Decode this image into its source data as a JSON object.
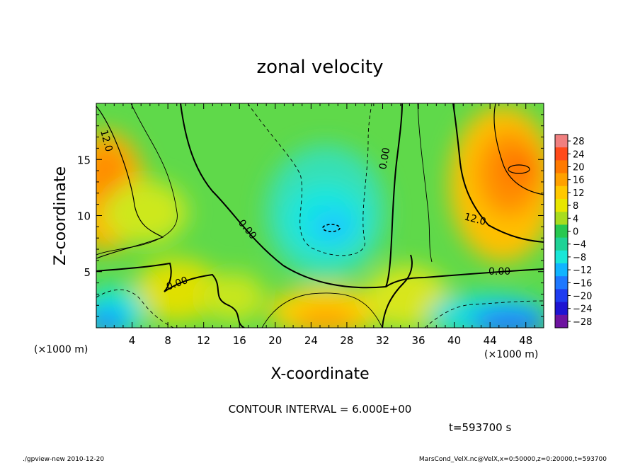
{
  "chart_data": {
    "type": "heatmap",
    "title": "zonal velocity",
    "xlabel": "X-coordinate",
    "ylabel": "Z-coordinate",
    "x_unit_label": "(×1000 m)",
    "x_unit_label_right": "(×1000 m)",
    "xlim": [
      0,
      50
    ],
    "ylim": [
      0,
      20
    ],
    "x_ticks": [
      "4",
      "8",
      "12",
      "16",
      "20",
      "24",
      "28",
      "32",
      "36",
      "40",
      "44",
      "48"
    ],
    "y_ticks": [
      "5",
      "10",
      "15"
    ],
    "colorbar_levels": [
      "28",
      "24",
      "20",
      "16",
      "12",
      "8",
      "4",
      "0",
      "−4",
      "−8",
      "−12",
      "−16",
      "−20",
      "−24",
      "−28"
    ],
    "colorbar_colors": [
      "#f07f7f",
      "#ff4a1a",
      "#ff7a00",
      "#ffa100",
      "#ffc800",
      "#e8e600",
      "#a8dc1e",
      "#28c850",
      "#1fd296",
      "#18e6d8",
      "#10b4ff",
      "#1e78ff",
      "#1e3cf0",
      "#1e14d2",
      "#6e14a0"
    ],
    "contour_labels": [
      "12.0",
      "0.00",
      "0.00",
      "0.00",
      "12.0",
      "0.00"
    ],
    "contour_interval": "CONTOUR INTERVAL = 6.000E+00",
    "time_label": "t=593700 s"
  },
  "footer": {
    "left": "./gpview-new  2010-12-20",
    "right": "MarsCond_VelX.nc@VelX,x=0:50000,z=0:20000,t=593700"
  }
}
